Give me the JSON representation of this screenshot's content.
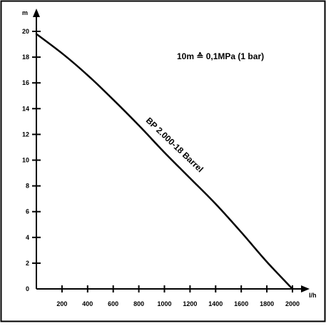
{
  "chart_data": {
    "type": "line",
    "title": "",
    "xlabel": "l/h",
    "ylabel": "m",
    "xlim": [
      0,
      2000
    ],
    "ylim": [
      0,
      20
    ],
    "x_ticks": [
      200,
      400,
      600,
      800,
      1000,
      1200,
      1400,
      1600,
      1800,
      2000
    ],
    "y_ticks": [
      0,
      2,
      4,
      6,
      8,
      10,
      12,
      14,
      16,
      18,
      20
    ],
    "grid": false,
    "legend": "none",
    "note": "10m ≙ 0,1MPa (1 bar)",
    "series": [
      {
        "name": "BP 2.000-18 Barrel",
        "color": "#000000",
        "x": [
          0,
          200,
          400,
          600,
          800,
          1000,
          1200,
          1400,
          1600,
          1800,
          2000
        ],
        "y": [
          19.8,
          18.3,
          16.6,
          14.7,
          12.7,
          10.6,
          8.6,
          6.6,
          4.4,
          2.1,
          0
        ]
      }
    ]
  }
}
